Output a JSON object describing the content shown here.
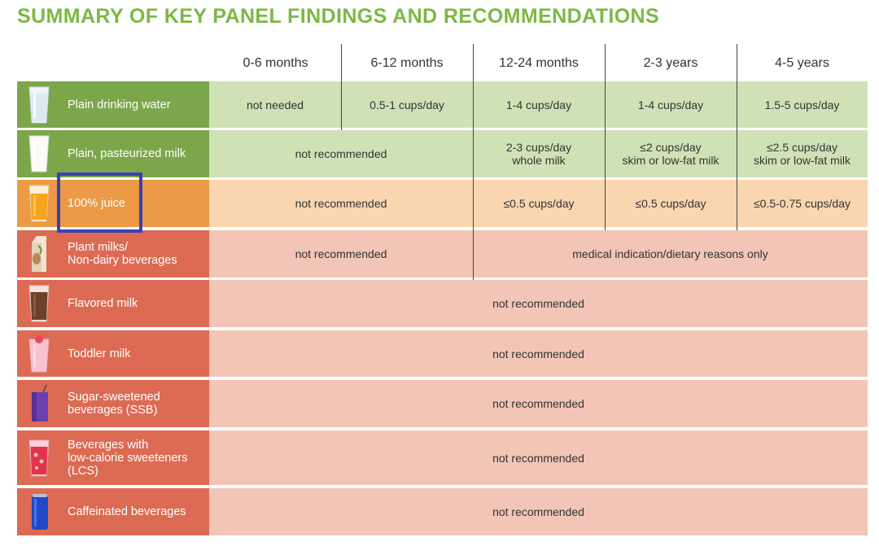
{
  "title": "SUMMARY OF KEY PANEL FINDINGS AND RECOMMENDATIONS",
  "colors": {
    "title": "#7bb944",
    "green_label": "#7ba64a",
    "green_cell": "#cfe2b6",
    "orange_label": "#ec9a45",
    "orange_cell": "#f9d5b0",
    "red_label": "#dd6a53",
    "red_cell": "#f2c5b6",
    "highlight_box": "#3c3fb8"
  },
  "headers": [
    "0-6 months",
    "6-12 months",
    "12-24 months",
    "2-3 years",
    "4-5 years"
  ],
  "rows": [
    {
      "label": "Plain drinking water",
      "icon": "water-glass-icon",
      "cells": [
        "not needed",
        "0.5-1 cups/day",
        "1-4 cups/day",
        "1-4 cups/day",
        "1.5-5 cups/day"
      ]
    },
    {
      "label": "Plain, pasteurized milk",
      "icon": "milk-glass-icon",
      "cells": [
        "not recommended",
        "2-3 cups/day\nwhole milk",
        "≤2 cups/day\nskim or low-fat milk",
        "≤2.5 cups/day\nskim or low-fat milk"
      ]
    },
    {
      "label": "100% juice",
      "icon": "juice-glass-icon",
      "cells": [
        "not recommended",
        "≤0.5 cups/day",
        "≤0.5 cups/day",
        "≤0.5-0.75 cups/day"
      ]
    },
    {
      "label": "Plant milks/\nNon-dairy beverages",
      "icon": "plant-milk-carton-icon",
      "cells": [
        "not recommended",
        "medical indication/dietary reasons only"
      ]
    },
    {
      "label": "Flavored milk",
      "icon": "chocolate-milk-icon",
      "cells": [
        "not recommended"
      ]
    },
    {
      "label": "Toddler milk",
      "icon": "toddler-milk-icon",
      "cells": [
        "not recommended"
      ]
    },
    {
      "label": "Sugar-sweetened\nbeverages (SSB)",
      "icon": "juice-box-icon",
      "cells": [
        "not recommended"
      ]
    },
    {
      "label": "Beverages with\nlow-calorie sweeteners\n(LCS)",
      "icon": "sweetened-drink-icon",
      "cells": [
        "not recommended"
      ]
    },
    {
      "label": "Caffeinated beverages",
      "icon": "soda-can-icon",
      "cells": [
        "not recommended"
      ]
    }
  ]
}
